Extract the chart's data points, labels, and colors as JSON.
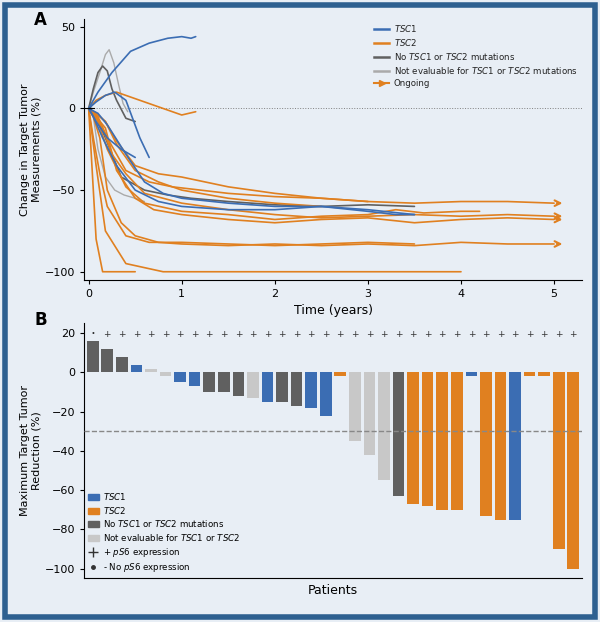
{
  "panel_A": {
    "xlabel": "Time (years)",
    "ylabel": "Change in Target Tumor\nMeasurements (%)",
    "ylim": [
      -105,
      55
    ],
    "xlim": [
      -0.05,
      5.3
    ],
    "yticks": [
      -100,
      -50,
      0,
      50
    ],
    "xticks": [
      0,
      1,
      2,
      3,
      4,
      5
    ],
    "colors": {
      "TSC1": "#3B6DB3",
      "TSC2": "#E08020",
      "No_mutation": "#606060",
      "Not_evaluable": "#AAAAAA"
    },
    "TSC1_lines": [
      {
        "x": [
          0,
          0.08,
          0.18,
          0.28,
          0.4,
          0.55,
          0.65
        ],
        "y": [
          0,
          4,
          8,
          10,
          5,
          -18,
          -30
        ]
      },
      {
        "x": [
          0,
          0.1,
          0.25,
          0.45,
          0.65,
          0.85,
          1.0,
          1.1,
          1.15
        ],
        "y": [
          0,
          10,
          22,
          35,
          40,
          43,
          44,
          43,
          44
        ]
      },
      {
        "x": [
          0,
          0.05,
          0.15,
          0.3,
          0.5,
          0.75,
          1.0,
          1.5,
          2.0,
          2.5,
          3.0,
          3.3,
          3.5
        ],
        "y": [
          0,
          -5,
          -18,
          -35,
          -50,
          -57,
          -60,
          -62,
          -62,
          -60,
          -63,
          -65,
          -65
        ]
      },
      {
        "x": [
          0,
          0.08,
          0.2,
          0.35,
          0.5
        ],
        "y": [
          0,
          -8,
          -18,
          -25,
          -30
        ]
      },
      {
        "x": [
          0,
          0.1,
          0.2,
          0.4,
          0.6,
          0.8,
          1.0,
          1.5,
          2.0,
          2.5,
          3.0,
          3.5
        ],
        "y": [
          0,
          -3,
          -10,
          -28,
          -45,
          -52,
          -55,
          -58,
          -60,
          -60,
          -62,
          -65
        ]
      }
    ],
    "TSC2_lines": [
      {
        "x": [
          0,
          0.08,
          0.18,
          0.3,
          0.5,
          0.7,
          1.0,
          1.5,
          2.0,
          2.5,
          3.0,
          3.5,
          4.0,
          4.5,
          5.0
        ],
        "y": [
          0,
          -5,
          -12,
          -38,
          -55,
          -62,
          -65,
          -68,
          -70,
          -68,
          -67,
          -70,
          -68,
          -67,
          -68
        ],
        "ongoing": true
      },
      {
        "x": [
          0,
          0.05,
          0.12,
          0.2,
          0.35,
          0.5,
          0.75,
          1.0,
          1.5,
          2.0,
          2.5,
          3.0,
          3.5,
          4.0,
          4.5,
          5.0
        ],
        "y": [
          0,
          -5,
          -18,
          -50,
          -70,
          -78,
          -82,
          -83,
          -84,
          -83,
          -84,
          -83,
          -84,
          -82,
          -83,
          -83
        ],
        "ongoing": true
      },
      {
        "x": [
          0,
          0.04,
          0.08,
          0.15,
          0.3,
          0.5
        ],
        "y": [
          0,
          -40,
          -80,
          -100,
          -100,
          -100
        ]
      },
      {
        "x": [
          0,
          0.08,
          0.18,
          0.3,
          0.5,
          0.75,
          1.0,
          1.15
        ],
        "y": [
          0,
          5,
          8,
          10,
          6,
          1,
          -4,
          -2
        ]
      },
      {
        "x": [
          0,
          0.1,
          0.2,
          0.4,
          0.65,
          0.9,
          1.2,
          1.5,
          2.0,
          2.5,
          3.0
        ],
        "y": [
          0,
          -5,
          -18,
          -38,
          -45,
          -48,
          -50,
          -52,
          -54,
          -55,
          -57
        ]
      },
      {
        "x": [
          0,
          0.08,
          0.18,
          0.3,
          0.5,
          0.75,
          1.0,
          1.5,
          2.0,
          2.5,
          3.0,
          3.5,
          4.0,
          4.5,
          5.0
        ],
        "y": [
          0,
          -3,
          -8,
          -20,
          -35,
          -40,
          -42,
          -48,
          -52,
          -55,
          -57,
          -58,
          -57,
          -57,
          -58
        ],
        "ongoing": true
      },
      {
        "x": [
          0,
          0.1,
          0.2,
          0.4,
          0.6,
          1.0,
          1.5,
          2.0,
          2.5,
          3.0,
          3.3,
          3.6,
          4.0,
          4.2
        ],
        "y": [
          0,
          -8,
          -25,
          -48,
          -58,
          -63,
          -65,
          -68,
          -66,
          -65,
          -62,
          -64,
          -63,
          -63
        ]
      },
      {
        "x": [
          0,
          0.05,
          0.12,
          0.2,
          0.4,
          0.65,
          1.0,
          1.5,
          2.0,
          2.5,
          3.0,
          3.5
        ],
        "y": [
          0,
          -18,
          -40,
          -60,
          -78,
          -82,
          -82,
          -83,
          -84,
          -83,
          -82,
          -83
        ]
      },
      {
        "x": [
          0,
          0.07,
          0.15,
          0.25,
          0.4,
          0.6,
          1.0,
          1.5,
          2.0,
          2.5,
          3.0,
          3.5,
          4.0,
          4.5,
          5.0
        ],
        "y": [
          0,
          -5,
          -12,
          -28,
          -40,
          -52,
          -58,
          -62,
          -65,
          -67,
          -66,
          -65,
          -66,
          -65,
          -66
        ],
        "ongoing": true
      },
      {
        "x": [
          0,
          0.08,
          0.18,
          0.3,
          0.5,
          0.75,
          1.0,
          1.5,
          2.0,
          2.5
        ],
        "y": [
          0,
          -3,
          -8,
          -22,
          -38,
          -45,
          -50,
          -55,
          -58,
          -60
        ]
      },
      {
        "x": [
          0,
          0.08,
          0.18,
          0.4,
          0.8,
          1.2,
          1.8,
          2.5,
          3.0,
          3.5,
          3.8,
          4.0
        ],
        "y": [
          0,
          -35,
          -75,
          -95,
          -100,
          -100,
          -100,
          -100,
          -100,
          -100,
          -100,
          -100
        ]
      }
    ],
    "No_mutation_lines": [
      {
        "x": [
          0,
          0.05,
          0.1,
          0.15,
          0.2,
          0.25,
          0.3,
          0.4,
          0.5
        ],
        "y": [
          0,
          12,
          22,
          26,
          23,
          12,
          5,
          -6,
          -8
        ]
      },
      {
        "x": [
          0,
          0.08,
          0.18,
          0.35,
          0.6,
          0.85,
          1.1,
          1.5,
          2.0,
          2.5,
          3.0,
          3.5
        ],
        "y": [
          0,
          -5,
          -18,
          -42,
          -50,
          -53,
          -55,
          -57,
          -59,
          -60,
          -59,
          -60
        ]
      }
    ],
    "Not_evaluable_lines": [
      {
        "x": [
          0,
          0.05,
          0.12,
          0.18,
          0.22,
          0.27,
          0.32,
          0.37,
          0.42
        ],
        "y": [
          0,
          10,
          22,
          33,
          36,
          28,
          15,
          3,
          -2
        ]
      },
      {
        "x": [
          0,
          0.05,
          0.1,
          0.18,
          0.28,
          0.38,
          0.5,
          0.6
        ],
        "y": [
          0,
          -5,
          -25,
          -42,
          -50,
          -53,
          -55,
          -57
        ]
      }
    ]
  },
  "panel_B": {
    "xlabel": "Patients",
    "ylabel": "Maximum Target Tumor\nReduction (%)",
    "ylim": [
      -105,
      25
    ],
    "yticks": [
      -100,
      -80,
      -60,
      -40,
      -20,
      0,
      20
    ],
    "dashed_line": -30,
    "colors": {
      "TSC1": "#3B6DB3",
      "TSC2": "#E08020",
      "No_mutation": "#606060",
      "Not_evaluable": "#C8C8C8"
    },
    "bars": [
      {
        "value": 16,
        "color": "No_mutation",
        "ps6": false
      },
      {
        "value": 12,
        "color": "No_mutation",
        "ps6": true
      },
      {
        "value": 8,
        "color": "No_mutation",
        "ps6": true
      },
      {
        "value": 4,
        "color": "TSC1",
        "ps6": true
      },
      {
        "value": 2,
        "color": "Not_evaluable",
        "ps6": true
      },
      {
        "value": -2,
        "color": "Not_evaluable",
        "ps6": true
      },
      {
        "value": -5,
        "color": "TSC1",
        "ps6": true
      },
      {
        "value": -7,
        "color": "TSC1",
        "ps6": true
      },
      {
        "value": -10,
        "color": "No_mutation",
        "ps6": true
      },
      {
        "value": -10,
        "color": "No_mutation",
        "ps6": true
      },
      {
        "value": -12,
        "color": "No_mutation",
        "ps6": true
      },
      {
        "value": -13,
        "color": "Not_evaluable",
        "ps6": true
      },
      {
        "value": -15,
        "color": "TSC1",
        "ps6": true
      },
      {
        "value": -15,
        "color": "No_mutation",
        "ps6": true
      },
      {
        "value": -17,
        "color": "No_mutation",
        "ps6": true
      },
      {
        "value": -18,
        "color": "TSC1",
        "ps6": true
      },
      {
        "value": -22,
        "color": "TSC1",
        "ps6": true
      },
      {
        "value": -2,
        "color": "TSC2",
        "ps6": true
      },
      {
        "value": -35,
        "color": "Not_evaluable",
        "ps6": true
      },
      {
        "value": -42,
        "color": "Not_evaluable",
        "ps6": true
      },
      {
        "value": -55,
        "color": "Not_evaluable",
        "ps6": true
      },
      {
        "value": -63,
        "color": "No_mutation",
        "ps6": true
      },
      {
        "value": -67,
        "color": "TSC2",
        "ps6": true
      },
      {
        "value": -68,
        "color": "TSC2",
        "ps6": true
      },
      {
        "value": -70,
        "color": "TSC2",
        "ps6": true
      },
      {
        "value": -70,
        "color": "TSC2",
        "ps6": true
      },
      {
        "value": -2,
        "color": "TSC1",
        "ps6": true
      },
      {
        "value": -73,
        "color": "TSC2",
        "ps6": true
      },
      {
        "value": -75,
        "color": "TSC2",
        "ps6": true
      },
      {
        "value": -75,
        "color": "TSC1",
        "ps6": true
      },
      {
        "value": -2,
        "color": "TSC2",
        "ps6": true
      },
      {
        "value": -2,
        "color": "TSC2",
        "ps6": true
      },
      {
        "value": -90,
        "color": "TSC2",
        "ps6": true
      },
      {
        "value": -100,
        "color": "TSC2",
        "ps6": true
      }
    ]
  },
  "background": "#E8EEF5",
  "border_color": "#2E6090",
  "fig_width": 6.0,
  "fig_height": 6.22
}
